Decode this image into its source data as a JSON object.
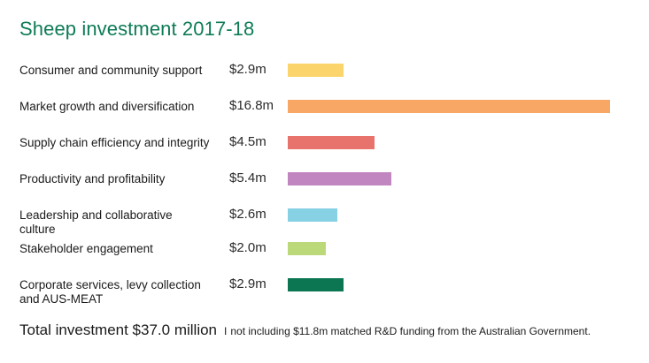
{
  "colors": {
    "title": "#0e7b55",
    "bars": [
      "#fbd56b",
      "#f8a765",
      "#e8736d",
      "#c185bf",
      "#86d2e4",
      "#bcd97a",
      "#0b7651"
    ]
  },
  "chart_data": {
    "type": "bar",
    "orientation": "horizontal",
    "title": "Sheep investment 2017-18",
    "categories": [
      "Consumer and community support",
      "Market growth and diversification",
      "Supply chain efficiency and integrity",
      "Productivity and profitability",
      "Leadership and collaborative culture",
      "Stakeholder engagement",
      "Corporate services, levy collection and AUS-MEAT"
    ],
    "values": [
      2.9,
      16.8,
      4.5,
      5.4,
      2.6,
      2.0,
      2.9
    ],
    "value_labels": [
      "$2.9m",
      "$16.8m",
      "$4.5m",
      "$5.4m",
      "$2.6m",
      "$2.0m",
      "$2.9m"
    ],
    "unit": "$m",
    "xlim": [
      0,
      16.8
    ],
    "grid": false,
    "legend": "none"
  },
  "footer": {
    "total": "Total investment $37.0 million",
    "separator": "I",
    "note": "not including $11.8m matched R&D funding from the Australian Government."
  }
}
